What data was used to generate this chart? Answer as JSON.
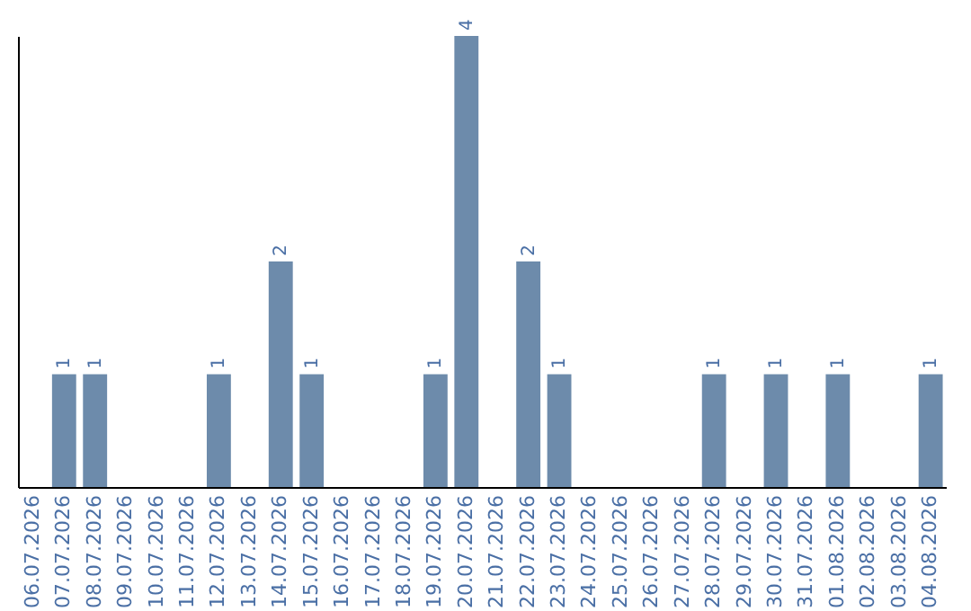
{
  "chart_data": {
    "type": "bar",
    "categories": [
      "06.07.2026",
      "07.07.2026",
      "08.07.2026",
      "09.07.2026",
      "10.07.2026",
      "11.07.2026",
      "12.07.2026",
      "13.07.2026",
      "14.07.2026",
      "15.07.2026",
      "16.07.2026",
      "17.07.2026",
      "18.07.2026",
      "19.07.2026",
      "20.07.2026",
      "21.07.2026",
      "22.07.2026",
      "23.07.2026",
      "24.07.2026",
      "25.07.2026",
      "26.07.2026",
      "27.07.2026",
      "28.07.2026",
      "29.07.2026",
      "30.07.2026",
      "31.07.2026",
      "01.08.2026",
      "02.08.2026",
      "03.08.2026",
      "04.08.2026"
    ],
    "values": [
      0,
      1,
      1,
      0,
      0,
      0,
      1,
      0,
      2,
      1,
      0,
      0,
      0,
      1,
      4,
      0,
      2,
      1,
      0,
      0,
      0,
      0,
      1,
      0,
      1,
      0,
      1,
      0,
      0,
      1
    ],
    "value_labels": [
      null,
      "1",
      "1",
      null,
      null,
      null,
      "1",
      null,
      "2",
      "1",
      null,
      null,
      null,
      "1",
      "4",
      null,
      "2",
      "1",
      null,
      null,
      null,
      null,
      "1",
      null,
      "1",
      null,
      "1",
      null,
      null,
      "1"
    ],
    "color": "#6d8bab",
    "grid": false,
    "tick_labels": "x"
  }
}
